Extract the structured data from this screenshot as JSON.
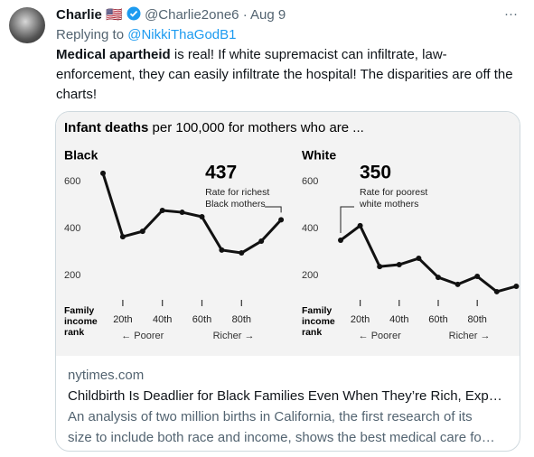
{
  "tweet": {
    "name": "Charlie",
    "flag": "🇺🇸",
    "handle": "@Charlie2one6",
    "separator": "·",
    "date": "Aug 9",
    "more": "···",
    "replying_prefix": "Replying to",
    "replying_to": "@NikkiThaGodB1",
    "text_bold": "Medical apartheid",
    "text": " is real! If white supremacist can infiltrate, law-enforcement, they can easily infiltrate the hospital! The disparities are off the charts!"
  },
  "card": {
    "image": {
      "header_bold": "Infant deaths",
      "header_rest": " per 100,000 for mothers who are ...",
      "x_label_lines": [
        "Family",
        "income",
        "rank"
      ],
      "poorer": "← Poorer",
      "richer": "Richer →"
    },
    "domain": "nytimes.com",
    "title": "Childbirth Is Deadlier for Black Families Even When They’re Rich, Exp…",
    "description_lines": [
      "An analysis of two million births in California, the first research of its",
      "size to include both race and income, shows the best medical care fo…"
    ]
  },
  "chart_data": [
    {
      "type": "line",
      "title": "Black",
      "color": "#111111",
      "categories": [
        null,
        "20th",
        null,
        "40th",
        null,
        "60th",
        null,
        "80th",
        null,
        null
      ],
      "values": [
        635,
        365,
        388,
        477,
        469,
        450,
        308,
        296,
        346,
        437
      ],
      "value_labels": [
        null,
        null,
        null,
        null,
        null,
        null,
        null,
        null,
        null,
        "437"
      ],
      "annotation_lines": [
        "Rate for richest",
        "Black mothers"
      ],
      "ylim": [
        100,
        700
      ],
      "yticks": [
        200,
        400,
        600
      ],
      "grid": false
    },
    {
      "type": "line",
      "title": "White",
      "color": "#111111",
      "categories": [
        null,
        "20th",
        null,
        "40th",
        null,
        "60th",
        null,
        "80th",
        null,
        null
      ],
      "values": [
        350,
        412,
        238,
        246,
        273,
        192,
        162,
        196,
        131,
        154
      ],
      "value_labels": [
        "350",
        null,
        null,
        null,
        null,
        null,
        null,
        null,
        null,
        null
      ],
      "annotation_lines": [
        "Rate for poorest",
        "white mothers"
      ],
      "ylim": [
        100,
        700
      ],
      "yticks": [
        200,
        400,
        600
      ],
      "grid": false
    }
  ]
}
